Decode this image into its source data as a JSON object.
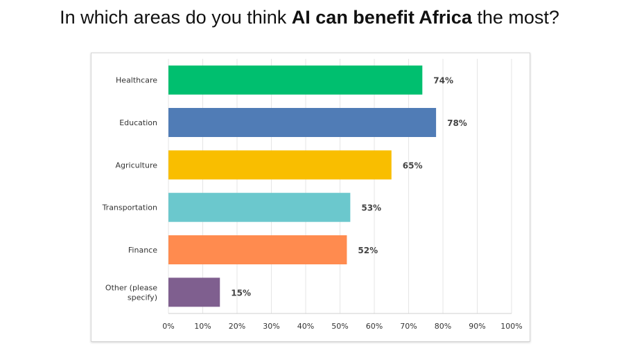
{
  "title": {
    "prefix": "In which areas do you think ",
    "bold": "AI can benefit Africa",
    "suffix": " the most?"
  },
  "chart_data": {
    "type": "bar",
    "orientation": "horizontal",
    "categories": [
      "Healthcare",
      "Education",
      "Agriculture",
      "Transportation",
      "Finance",
      "Other (please specify)"
    ],
    "values": [
      74,
      78,
      65,
      53,
      52,
      15
    ],
    "value_labels": [
      "74%",
      "78%",
      "65%",
      "53%",
      "52%",
      "15%"
    ],
    "colors": [
      "#00bf6f",
      "#507cb6",
      "#f9be00",
      "#6bc8cd",
      "#ff8b4f",
      "#7f5f8f"
    ],
    "xlim": [
      0,
      100
    ],
    "x_ticks": [
      "0%",
      "10%",
      "20%",
      "30%",
      "40%",
      "50%",
      "60%",
      "70%",
      "80%",
      "90%",
      "100%"
    ],
    "grid": true
  }
}
